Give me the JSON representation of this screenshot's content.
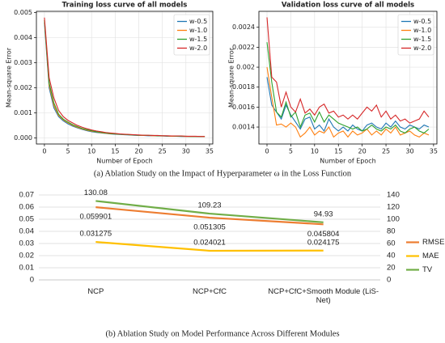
{
  "chart_data": [
    {
      "type": "line",
      "title": "Training loss curve of all models",
      "xlabel": "Number of Epoch",
      "ylabel": "Mean-square Error",
      "x": [
        0,
        1,
        2,
        3,
        4,
        5,
        6,
        7,
        8,
        9,
        10,
        11,
        12,
        13,
        14,
        15,
        16,
        17,
        18,
        19,
        20,
        21,
        22,
        23,
        24,
        25,
        26,
        27,
        28,
        29,
        30,
        31,
        32,
        33,
        34
      ],
      "series": [
        {
          "name": "w-0.5",
          "color": "#1f77b4",
          "values": [
            0.0046,
            0.002,
            0.0012,
            0.00085,
            0.00068,
            0.00056,
            0.00047,
            0.0004,
            0.00034,
            0.00029,
            0.00025,
            0.00022,
            0.0002,
            0.00018,
            0.00016,
            0.00015,
            0.00014,
            0.00013,
            0.00012,
            0.00011,
            0.0001,
            0.0001,
            9e-05,
            9e-05,
            8e-05,
            8e-05,
            7e-05,
            7e-05,
            7e-05,
            6e-05,
            6e-05,
            6e-05,
            6e-05,
            5e-05,
            5e-05
          ]
        },
        {
          "name": "w-1.0",
          "color": "#ff7f0e",
          "values": [
            0.0047,
            0.0021,
            0.0013,
            0.0009,
            0.00072,
            0.0006,
            0.0005,
            0.00042,
            0.00036,
            0.00031,
            0.00027,
            0.00024,
            0.00021,
            0.00019,
            0.00017,
            0.00016,
            0.00015,
            0.00014,
            0.00013,
            0.00012,
            0.00011,
            0.0001,
            0.0001,
            9e-05,
            9e-05,
            8e-05,
            8e-05,
            7e-05,
            7e-05,
            7e-05,
            6e-05,
            6e-05,
            6e-05,
            6e-05,
            5e-05
          ]
        },
        {
          "name": "w-1.5",
          "color": "#2ca02c",
          "values": [
            0.0047,
            0.0022,
            0.0014,
            0.00095,
            0.00075,
            0.00063,
            0.00053,
            0.00045,
            0.00038,
            0.00033,
            0.00029,
            0.00025,
            0.00022,
            0.0002,
            0.00018,
            0.00016,
            0.00015,
            0.00014,
            0.00013,
            0.00012,
            0.00011,
            0.00011,
            0.0001,
            0.0001,
            9e-05,
            9e-05,
            8e-05,
            8e-05,
            7e-05,
            7e-05,
            7e-05,
            6e-05,
            6e-05,
            6e-05,
            6e-05
          ]
        },
        {
          "name": "w-2.0",
          "color": "#d62728",
          "values": [
            0.0048,
            0.0024,
            0.0016,
            0.0011,
            0.00085,
            0.0007,
            0.0006,
            0.0005,
            0.00043,
            0.00037,
            0.00032,
            0.00028,
            0.00025,
            0.00022,
            0.0002,
            0.00018,
            0.00016,
            0.00015,
            0.00014,
            0.00013,
            0.00012,
            0.00011,
            0.00011,
            0.0001,
            0.0001,
            9e-05,
            9e-05,
            8e-05,
            8e-05,
            8e-05,
            7e-05,
            7e-05,
            7e-05,
            6e-05,
            6e-05
          ]
        }
      ],
      "xlim": [
        -1.7,
        35.7
      ],
      "xticks": [
        0,
        5,
        10,
        15,
        20,
        25,
        30,
        35
      ],
      "ylim": [
        -0.00024,
        0.00505
      ],
      "yticks": [
        {
          "value": 0,
          "label": "0.000"
        },
        {
          "value": 0.001,
          "label": "0.001"
        },
        {
          "value": 0.002,
          "label": "0.002"
        },
        {
          "value": 0.003,
          "label": "0.003"
        },
        {
          "value": 0.004,
          "label": "0.004"
        },
        {
          "value": 0.005,
          "label": "0.005"
        }
      ],
      "grid": true,
      "legend": "upper right"
    },
    {
      "type": "line",
      "title": "Validation loss curve of all models",
      "xlabel": "Number of Epoch",
      "ylabel": "Mean-square Error",
      "x": [
        0,
        1,
        2,
        3,
        4,
        5,
        6,
        7,
        8,
        9,
        10,
        11,
        12,
        13,
        14,
        15,
        16,
        17,
        18,
        19,
        20,
        21,
        22,
        23,
        24,
        25,
        26,
        27,
        28,
        29,
        30,
        31,
        32,
        33,
        34
      ],
      "series": [
        {
          "name": "w-0.5",
          "color": "#1f77b4",
          "values": [
            0.0019,
            0.00162,
            0.00155,
            0.00148,
            0.00162,
            0.00152,
            0.00145,
            0.00138,
            0.00148,
            0.0015,
            0.00138,
            0.00142,
            0.00136,
            0.00148,
            0.0014,
            0.00136,
            0.0014,
            0.00136,
            0.00142,
            0.00138,
            0.00136,
            0.00142,
            0.00144,
            0.0014,
            0.00138,
            0.00144,
            0.0014,
            0.00146,
            0.0014,
            0.00138,
            0.00142,
            0.0014,
            0.00138,
            0.00142,
            0.0014
          ]
        },
        {
          "name": "w-1.0",
          "color": "#ff7f0e",
          "values": [
            0.002,
            0.0017,
            0.00142,
            0.00143,
            0.0014,
            0.00144,
            0.0014,
            0.0013,
            0.00134,
            0.0014,
            0.00132,
            0.00136,
            0.00134,
            0.0014,
            0.0013,
            0.00134,
            0.00136,
            0.0013,
            0.00136,
            0.00132,
            0.00134,
            0.00138,
            0.00132,
            0.00136,
            0.00132,
            0.00138,
            0.00134,
            0.0014,
            0.00132,
            0.00134,
            0.00136,
            0.00132,
            0.0013,
            0.00134,
            0.00132
          ]
        },
        {
          "name": "w-1.5",
          "color": "#2ca02c",
          "values": [
            0.00225,
            0.00185,
            0.00155,
            0.0015,
            0.00165,
            0.0015,
            0.00155,
            0.0014,
            0.00152,
            0.00154,
            0.00145,
            0.00155,
            0.00145,
            0.00152,
            0.00148,
            0.00144,
            0.00142,
            0.0014,
            0.00138,
            0.0014,
            0.00136,
            0.00138,
            0.00142,
            0.00138,
            0.00136,
            0.0014,
            0.00138,
            0.00142,
            0.00136,
            0.00134,
            0.00138,
            0.0014,
            0.00136,
            0.00134,
            0.00138
          ]
        },
        {
          "name": "w-2.0",
          "color": "#d62728",
          "values": [
            0.0025,
            0.0019,
            0.00185,
            0.0016,
            0.00175,
            0.0016,
            0.00155,
            0.00168,
            0.00154,
            0.00158,
            0.00152,
            0.0016,
            0.00163,
            0.00154,
            0.00156,
            0.0015,
            0.00152,
            0.00148,
            0.00152,
            0.00148,
            0.00154,
            0.0016,
            0.00156,
            0.00162,
            0.0015,
            0.00156,
            0.00148,
            0.00152,
            0.00146,
            0.00148,
            0.00144,
            0.00146,
            0.00148,
            0.00156,
            0.0015
          ]
        }
      ],
      "xlim": [
        -1.7,
        35.7
      ],
      "xticks": [
        0,
        5,
        10,
        15,
        20,
        25,
        30,
        35
      ],
      "ylim": [
        0.00123,
        0.00256
      ],
      "yticks": [
        0.0014,
        0.0016,
        0.0018,
        0.002,
        0.0022,
        0.0024
      ],
      "grid": true,
      "legend": "upper right"
    },
    {
      "type": "line",
      "categories": [
        "NCP",
        "NCP+CfC",
        "NCP+CfC+Smooth Module (LiS-Net)"
      ],
      "series": [
        {
          "name": "RMSE",
          "color": "#ed7d31",
          "values": [
            0.059901,
            0.051305,
            0.045804
          ]
        },
        {
          "name": "MAE",
          "color": "#ffc000",
          "values": [
            0.031275,
            0.024021,
            0.024175
          ]
        },
        {
          "name": "TV",
          "color": "#70ad47",
          "axis": "y2",
          "values": [
            130.08,
            109.23,
            94.93
          ]
        }
      ],
      "ylim": [
        0,
        0.07
      ],
      "yticks": [
        0,
        0.01,
        0.02,
        0.03,
        0.04,
        0.05,
        0.06,
        0.07
      ],
      "y2lim": [
        0,
        140
      ],
      "y2ticks": [
        0,
        20,
        40,
        60,
        80,
        100,
        120,
        140
      ],
      "grid": true,
      "legend": "right"
    }
  ],
  "captions": [
    "(a) Ablation Study on the Impact of Hyperparameter ω in the Loss Function",
    "(b) Ablation Study on Model Performance Across Different Modules"
  ]
}
